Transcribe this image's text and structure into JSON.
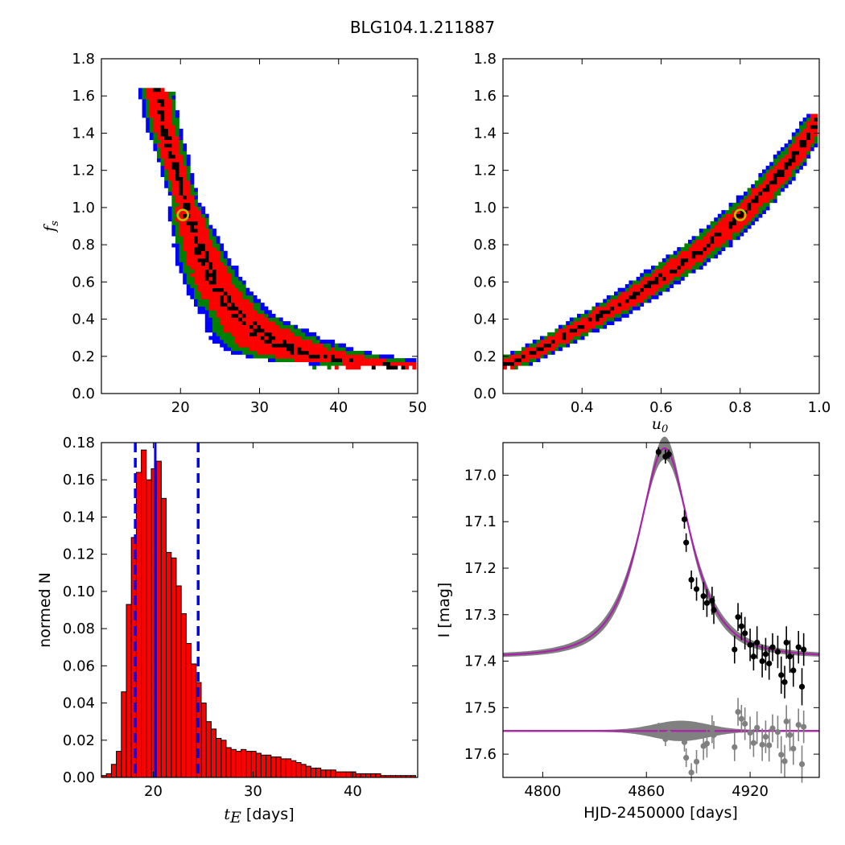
{
  "figure": {
    "title": "BLG104.1.211887"
  },
  "colors": {
    "inner": "#ff0000",
    "mid": "#007f00",
    "outer": "#0000ff",
    "core": "#000000",
    "best": "#bfbf00",
    "model": "#aa22aa",
    "band": "#808080",
    "hist": "#ff0000",
    "vline": "#0000ff"
  },
  "chart_data": [
    {
      "id": "fs-vs-tE",
      "type": "heatmap",
      "xlabel": "",
      "ylabel": "f_s",
      "xlim": [
        10,
        50
      ],
      "ylim": [
        0.0,
        1.8
      ],
      "xticks": [
        "20",
        "30",
        "40",
        "50"
      ],
      "xtick_values": [
        20,
        30,
        40,
        50
      ],
      "yticks": [
        "0.0",
        "0.2",
        "0.4",
        "0.6",
        "0.8",
        "1.0",
        "1.2",
        "1.4",
        "1.6",
        "1.8"
      ],
      "ytick_values": [
        0.0,
        0.2,
        0.4,
        0.6,
        0.8,
        1.0,
        1.2,
        1.4,
        1.6,
        1.8
      ],
      "ridge": [
        [
          16.8,
          1.62
        ],
        [
          17.5,
          1.45
        ],
        [
          18.5,
          1.3
        ],
        [
          19.5,
          1.15
        ],
        [
          20.5,
          1.0
        ],
        [
          21.5,
          0.85
        ],
        [
          22.8,
          0.7
        ],
        [
          24.5,
          0.55
        ],
        [
          26.5,
          0.44
        ],
        [
          28.5,
          0.36
        ],
        [
          31,
          0.28
        ],
        [
          34,
          0.22
        ],
        [
          37,
          0.19
        ],
        [
          40,
          0.17
        ],
        [
          43,
          0.16
        ],
        [
          46,
          0.15
        ]
      ],
      "best_fit": {
        "x": 20.3,
        "y": 0.96
      }
    },
    {
      "id": "fs-vs-u0",
      "type": "heatmap",
      "xlabel": "u_0",
      "ylabel": "",
      "xlim": [
        0.2,
        1.0
      ],
      "ylim": [
        0.0,
        1.8
      ],
      "xticks": [
        "0.4",
        "0.6",
        "0.8",
        "1.0"
      ],
      "xtick_values": [
        0.4,
        0.6,
        0.8,
        1.0
      ],
      "yticks": [
        "0.0",
        "0.2",
        "0.4",
        "0.6",
        "0.8",
        "1.0",
        "1.2",
        "1.4",
        "1.6",
        "1.8"
      ],
      "ytick_values": [
        0.0,
        0.2,
        0.4,
        0.6,
        0.8,
        1.0,
        1.2,
        1.4,
        1.6,
        1.8
      ],
      "ridge": [
        [
          0.21,
          0.15
        ],
        [
          0.3,
          0.24
        ],
        [
          0.4,
          0.36
        ],
        [
          0.5,
          0.48
        ],
        [
          0.6,
          0.62
        ],
        [
          0.7,
          0.77
        ],
        [
          0.8,
          0.95
        ],
        [
          0.9,
          1.18
        ],
        [
          0.96,
          1.35
        ],
        [
          1.0,
          1.5
        ]
      ],
      "best_fit": {
        "x": 0.8,
        "y": 0.96
      }
    },
    {
      "id": "tE-histogram",
      "type": "bar",
      "xlabel": "t_E [days]",
      "xlabel_math": "t_E",
      "xlabel_rest": " [days]",
      "ylabel": "normed N",
      "xlim": [
        14.8,
        46.5
      ],
      "ylim": [
        0.0,
        0.18
      ],
      "xticks": [
        "20",
        "30",
        "40"
      ],
      "xtick_values": [
        20,
        30,
        40
      ],
      "yticks": [
        "0.00",
        "0.02",
        "0.04",
        "0.06",
        "0.08",
        "0.10",
        "0.12",
        "0.14",
        "0.16",
        "0.18"
      ],
      "ytick_values": [
        0.0,
        0.02,
        0.04,
        0.06,
        0.08,
        0.1,
        0.12,
        0.14,
        0.16,
        0.18
      ],
      "bin_start": 14.8,
      "bin_width": 0.5,
      "values": [
        0.001,
        0.002,
        0.007,
        0.014,
        0.046,
        0.093,
        0.129,
        0.164,
        0.176,
        0.16,
        0.166,
        0.17,
        0.15,
        0.121,
        0.118,
        0.103,
        0.088,
        0.072,
        0.061,
        0.051,
        0.04,
        0.03,
        0.026,
        0.021,
        0.02,
        0.016,
        0.015,
        0.014,
        0.015,
        0.014,
        0.014,
        0.013,
        0.012,
        0.012,
        0.011,
        0.011,
        0.01,
        0.01,
        0.009,
        0.008,
        0.007,
        0.006,
        0.005,
        0.005,
        0.004,
        0.004,
        0.004,
        0.003,
        0.003,
        0.003,
        0.003,
        0.002,
        0.002,
        0.002,
        0.002,
        0.002,
        0.001,
        0.001,
        0.001,
        0.001,
        0.001,
        0.001,
        0.001
      ],
      "median": 20.2,
      "lower": 18.2,
      "upper": 24.5
    },
    {
      "id": "lightcurve",
      "type": "line",
      "xlabel": "HJD-2450000 [days]",
      "ylabel": "I [mag]",
      "xlim": [
        4777,
        4960
      ],
      "ylim": [
        17.65,
        16.93
      ],
      "xticks": [
        "4800",
        "4860",
        "4920"
      ],
      "xtick_values": [
        4800,
        4860,
        4920
      ],
      "yticks": [
        "17.0",
        "17.1",
        "17.2",
        "17.3",
        "17.4",
        "17.5",
        "17.6"
      ],
      "ytick_values": [
        17.0,
        17.1,
        17.2,
        17.3,
        17.4,
        17.5,
        17.6
      ],
      "model": {
        "t0": 4870.5,
        "tE": 20.3,
        "u0": 0.8,
        "fs": 0.96,
        "baseline": 17.39
      },
      "residual_offset": 17.55,
      "points": [
        {
          "t": 4867,
          "mag": 16.95,
          "err": 0.01
        },
        {
          "t": 4871,
          "mag": 16.96,
          "err": 0.015
        },
        {
          "t": 4873,
          "mag": 16.955,
          "err": 0.01
        },
        {
          "t": 4882,
          "mag": 17.095,
          "err": 0.02
        },
        {
          "t": 4883,
          "mag": 17.145,
          "err": 0.02
        },
        {
          "t": 4886,
          "mag": 17.225,
          "err": 0.02
        },
        {
          "t": 4889,
          "mag": 17.245,
          "err": 0.025
        },
        {
          "t": 4893,
          "mag": 17.26,
          "err": 0.03
        },
        {
          "t": 4895,
          "mag": 17.275,
          "err": 0.03
        },
        {
          "t": 4898,
          "mag": 17.27,
          "err": 0.03
        },
        {
          "t": 4899,
          "mag": 17.29,
          "err": 0.03
        },
        {
          "t": 4911,
          "mag": 17.375,
          "err": 0.03
        },
        {
          "t": 4913,
          "mag": 17.305,
          "err": 0.03
        },
        {
          "t": 4915,
          "mag": 17.325,
          "err": 0.03
        },
        {
          "t": 4917,
          "mag": 17.34,
          "err": 0.035
        },
        {
          "t": 4920,
          "mag": 17.365,
          "err": 0.035
        },
        {
          "t": 4922,
          "mag": 17.39,
          "err": 0.03
        },
        {
          "t": 4924,
          "mag": 17.36,
          "err": 0.035
        },
        {
          "t": 4927,
          "mag": 17.4,
          "err": 0.035
        },
        {
          "t": 4929,
          "mag": 17.385,
          "err": 0.035
        },
        {
          "t": 4931,
          "mag": 17.405,
          "err": 0.035
        },
        {
          "t": 4933,
          "mag": 17.37,
          "err": 0.03
        },
        {
          "t": 4936,
          "mag": 17.38,
          "err": 0.035
        },
        {
          "t": 4938,
          "mag": 17.43,
          "err": 0.04
        },
        {
          "t": 4940,
          "mag": 17.445,
          "err": 0.035
        },
        {
          "t": 4941,
          "mag": 17.36,
          "err": 0.035
        },
        {
          "t": 4943,
          "mag": 17.39,
          "err": 0.035
        },
        {
          "t": 4945,
          "mag": 17.42,
          "err": 0.035
        },
        {
          "t": 4948,
          "mag": 17.37,
          "err": 0.035
        },
        {
          "t": 4950,
          "mag": 17.455,
          "err": 0.04
        },
        {
          "t": 4951,
          "mag": 17.375,
          "err": 0.035
        }
      ]
    }
  ]
}
